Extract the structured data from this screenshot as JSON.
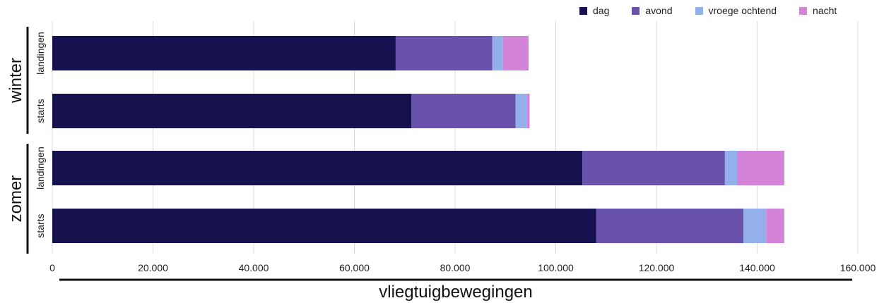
{
  "chart_data": {
    "type": "bar",
    "orientation": "horizontal",
    "stacked": true,
    "title": "",
    "xlabel": "vliegtuigbewegingen",
    "ylabel": "",
    "xlim": [
      0,
      160000
    ],
    "x_ticks": [
      0,
      20000,
      40000,
      60000,
      80000,
      100000,
      120000,
      140000,
      160000
    ],
    "x_tick_labels": [
      "0",
      "20.000",
      "40.000",
      "60.000",
      "80.000",
      "100.000",
      "120.000",
      "140.000",
      "160.000"
    ],
    "grid": "vertical",
    "legend_position": "top-right",
    "groups": [
      {
        "label": "winter",
        "categories": [
          "landingen",
          "starts"
        ]
      },
      {
        "label": "zomer",
        "categories": [
          "landingen",
          "starts"
        ]
      }
    ],
    "categories": [
      "winter landingen",
      "winter starts",
      "zomer landingen",
      "zomer starts"
    ],
    "category_labels": [
      "landingen",
      "starts",
      "landingen",
      "starts"
    ],
    "series": [
      {
        "name": "dag",
        "color": "#16114f",
        "values": [
          68200,
          71300,
          105300,
          108000
        ]
      },
      {
        "name": "avond",
        "color": "#6852ab",
        "values": [
          19200,
          20700,
          28300,
          29300
        ]
      },
      {
        "name": "vroege ochtend",
        "color": "#93b0ea",
        "values": [
          2100,
          2300,
          2400,
          4500
        ]
      },
      {
        "name": "nacht",
        "color": "#d384d8",
        "values": [
          5100,
          500,
          9400,
          3600
        ]
      }
    ]
  }
}
